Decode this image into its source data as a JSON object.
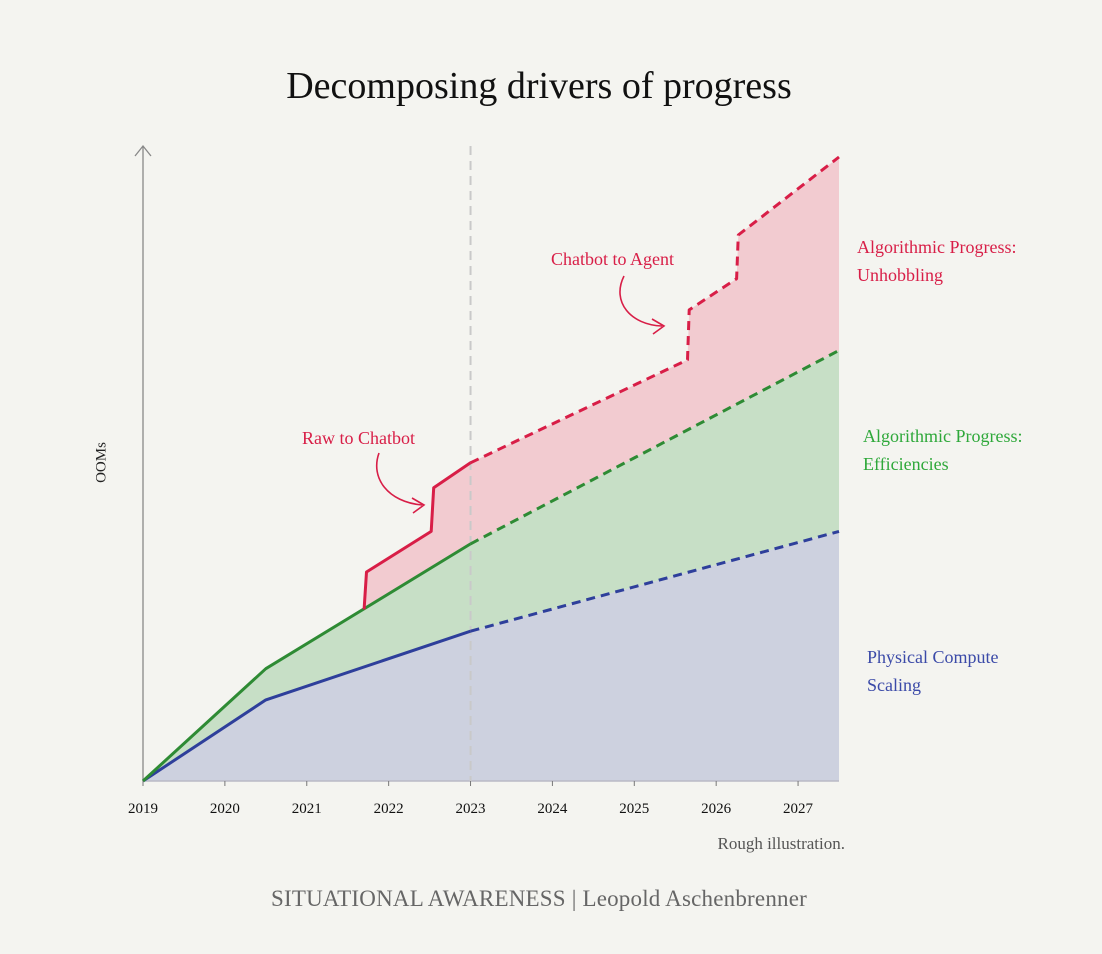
{
  "chart_data": {
    "type": "area",
    "title": "Decomposing drivers of progress",
    "ylabel": "OOMs",
    "x_ticks": [
      "2019",
      "2020",
      "2021",
      "2022",
      "2023",
      "2024",
      "2025",
      "2026",
      "2027"
    ],
    "xlim": [
      2019,
      2027.5
    ],
    "ylim": [
      0,
      10
    ],
    "grid": false,
    "projection_start": 2023,
    "series": [
      {
        "name": "Physical Compute Scaling",
        "color": "#2e3f9b",
        "fill": "#cdd1df",
        "x": [
          2019,
          2020.5,
          2023,
          2027.5
        ],
        "y": [
          0,
          1.3,
          2.4,
          4.0
        ]
      },
      {
        "name": "Algorithmic Progress: Efficiencies",
        "color": "#2e8b34",
        "fill": "#c7dfc6",
        "x": [
          2019,
          2020.5,
          2023,
          2027.5
        ],
        "y": [
          0,
          1.8,
          3.8,
          6.9
        ]
      },
      {
        "name": "Algorithmic Progress: Unhobbling",
        "color": "#d81e47",
        "fill": "#f2cbd0",
        "x": [
          2021.7,
          2021.73,
          2022.52,
          2022.55,
          2023,
          2025.65,
          2025.67,
          2026.25,
          2026.27,
          2027.5
        ],
        "y": [
          2.75,
          3.35,
          4.0,
          4.7,
          5.1,
          6.75,
          7.55,
          8.05,
          8.75,
          10.0
        ]
      }
    ],
    "annotations": [
      "Raw to Chatbot",
      "Chatbot to Agent"
    ]
  },
  "labels": {
    "title": "Decomposing drivers of progress",
    "ylabel": "OOMs",
    "unhobbling": [
      "Algorithmic Progress:",
      "Unhobbling"
    ],
    "efficiencies": [
      "Algorithmic Progress:",
      "Efficiencies"
    ],
    "compute": [
      "Physical Compute",
      "Scaling"
    ],
    "raw_to_chatbot": "Raw to Chatbot",
    "chatbot_to_agent": "Chatbot to Agent",
    "note": "Rough illustration.",
    "footer": "SITUATIONAL AWARENESS | Leopold Aschenbrenner"
  },
  "colors": {
    "background": "#f4f4f0",
    "unhobbling_text": "#d81e47",
    "efficiencies_text": "#2ea83a",
    "compute_text": "#3b4aa8"
  }
}
